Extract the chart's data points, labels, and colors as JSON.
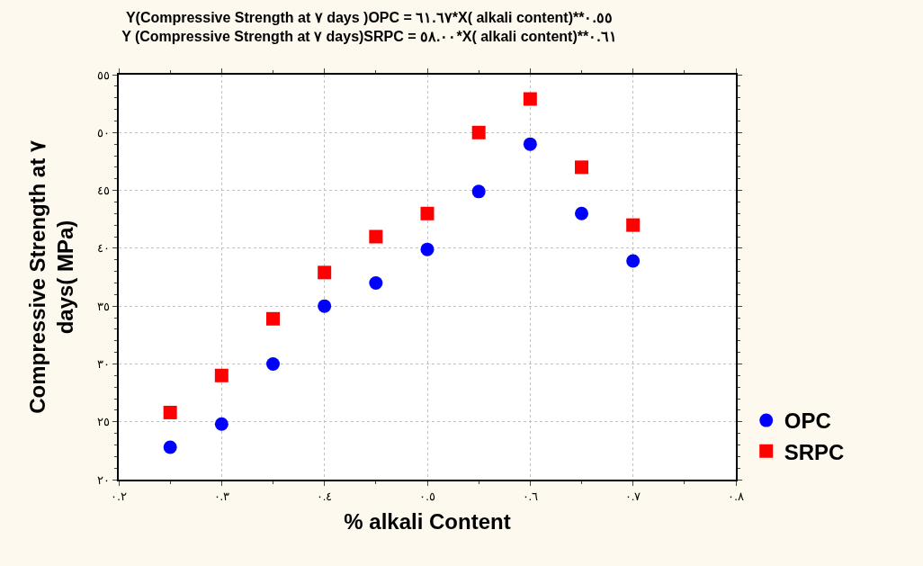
{
  "chart_data": {
    "type": "scatter",
    "title": "Y(Compressive Strength at ٧ days )OPC = ٦١.٦٧*X( alkali content)**٠.٥٥\nY (Compressive Strength at ٧ days)SRPC = ٥٨.٠٠*X( alkali content)**٠.٦١",
    "xlabel": "% alkali Content",
    "ylabel": "Compressive Strength at ٧\ndays( MPa)",
    "x": [
      0.25,
      0.3,
      0.35,
      0.4,
      0.45,
      0.5,
      0.55,
      0.6,
      0.65,
      0.7
    ],
    "series": [
      {
        "name": "OPC",
        "color": "#0000ff",
        "marker": "circle",
        "values": [
          22.8,
          24.8,
          30,
          35,
          37,
          39.9,
          44.9,
          49,
          43,
          38.9
        ]
      },
      {
        "name": "SRPC",
        "color": "#ff0000",
        "marker": "square",
        "values": [
          25.8,
          29,
          33.9,
          37.9,
          41,
          43,
          50,
          52.9,
          47,
          42
        ]
      }
    ],
    "xlim": [
      0.2,
      0.8
    ],
    "ylim": [
      20,
      55
    ],
    "xticks": [
      {
        "value": 0.2,
        "label": "٠.٢"
      },
      {
        "value": 0.3,
        "label": "٠.٣"
      },
      {
        "value": 0.4,
        "label": "٠.٤"
      },
      {
        "value": 0.5,
        "label": "٠.٥"
      },
      {
        "value": 0.6,
        "label": "٠.٦"
      },
      {
        "value": 0.7,
        "label": "٠.٧"
      },
      {
        "value": 0.8,
        "label": "٠.٨"
      }
    ],
    "yticks": [
      {
        "value": 20,
        "label": "٢٠"
      },
      {
        "value": 25,
        "label": "٢٥"
      },
      {
        "value": 30,
        "label": "٣٠"
      },
      {
        "value": 35,
        "label": "٣٥"
      },
      {
        "value": 40,
        "label": "٤٠"
      },
      {
        "value": 45,
        "label": "٤٥"
      },
      {
        "value": 50,
        "label": "٥٠"
      },
      {
        "value": 55,
        "label": "٥٥"
      }
    ],
    "grid": true,
    "legend": "bottom right"
  }
}
